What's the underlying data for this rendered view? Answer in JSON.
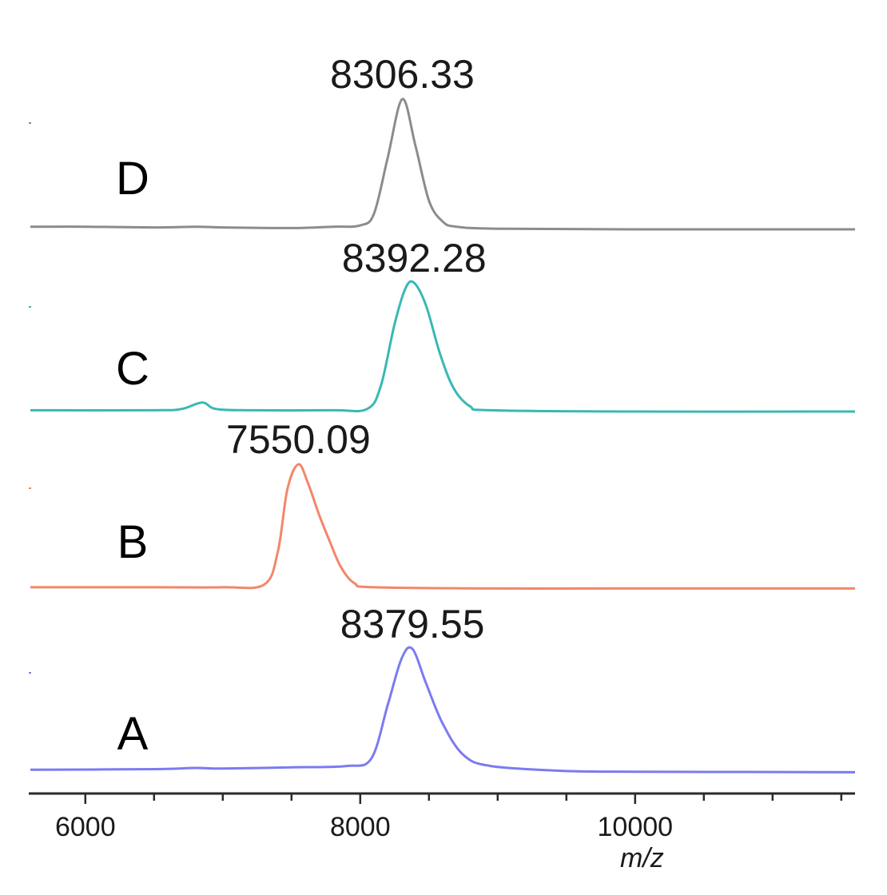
{
  "chart_data": {
    "type": "line",
    "title": "",
    "xlabel": "m/z",
    "ylabel": "",
    "xlim": [
      5600,
      11600
    ],
    "x_ticks": [
      6000,
      8000,
      10000
    ],
    "x_tick_labels": [
      "6000",
      "8000",
      "10000"
    ],
    "grid": false,
    "legend": "none",
    "layout": "stacked traces",
    "series": [
      {
        "name": "D",
        "color": "#8c8c8c",
        "peak_label": "8306.33",
        "peak_x": 8306.33,
        "points": [
          [
            5600,
            0.02
          ],
          [
            6000,
            0.02
          ],
          [
            6500,
            0.015
          ],
          [
            6800,
            0.02
          ],
          [
            7000,
            0.015
          ],
          [
            7500,
            0.01
          ],
          [
            7800,
            0.02
          ],
          [
            8000,
            0.03
          ],
          [
            8100,
            0.12
          ],
          [
            8200,
            0.55
          ],
          [
            8306.33,
            1.0
          ],
          [
            8400,
            0.65
          ],
          [
            8500,
            0.22
          ],
          [
            8600,
            0.06
          ],
          [
            8700,
            0.02
          ],
          [
            9000,
            0.005
          ],
          [
            10000,
            0.0
          ],
          [
            11600,
            0.0
          ]
        ]
      },
      {
        "name": "C",
        "color": "#3ab8b4",
        "peak_label": "8392.28",
        "peak_x": 8392.28,
        "points": [
          [
            5600,
            0.01
          ],
          [
            6500,
            0.01
          ],
          [
            6700,
            0.02
          ],
          [
            6850,
            0.07
          ],
          [
            6950,
            0.02
          ],
          [
            7200,
            0.01
          ],
          [
            7800,
            0.01
          ],
          [
            8050,
            0.02
          ],
          [
            8150,
            0.2
          ],
          [
            8250,
            0.68
          ],
          [
            8330,
            0.96
          ],
          [
            8392.28,
            1.0
          ],
          [
            8480,
            0.82
          ],
          [
            8580,
            0.45
          ],
          [
            8680,
            0.18
          ],
          [
            8800,
            0.04
          ],
          [
            8950,
            0.01
          ],
          [
            10000,
            0.0
          ],
          [
            11600,
            0.0
          ]
        ]
      },
      {
        "name": "B",
        "color": "#f2876a",
        "peak_label": "7550.09",
        "peak_x": 7550.09,
        "points": [
          [
            5600,
            0.02
          ],
          [
            6500,
            0.02
          ],
          [
            7000,
            0.02
          ],
          [
            7300,
            0.04
          ],
          [
            7400,
            0.3
          ],
          [
            7470,
            0.8
          ],
          [
            7550.09,
            1.0
          ],
          [
            7620,
            0.85
          ],
          [
            7700,
            0.6
          ],
          [
            7780,
            0.38
          ],
          [
            7860,
            0.18
          ],
          [
            7960,
            0.05
          ],
          [
            8100,
            0.02
          ],
          [
            9000,
            0.01
          ],
          [
            10000,
            0.01
          ],
          [
            11600,
            0.01
          ]
        ]
      },
      {
        "name": "A",
        "color": "#7b7bf0",
        "peak_label": "8379.55",
        "peak_x": 8379.55,
        "points": [
          [
            5600,
            0.03
          ],
          [
            6500,
            0.035
          ],
          [
            6800,
            0.045
          ],
          [
            7000,
            0.04
          ],
          [
            7500,
            0.05
          ],
          [
            7900,
            0.06
          ],
          [
            8080,
            0.12
          ],
          [
            8200,
            0.55
          ],
          [
            8300,
            0.92
          ],
          [
            8379.55,
            1.0
          ],
          [
            8480,
            0.72
          ],
          [
            8600,
            0.4
          ],
          [
            8750,
            0.15
          ],
          [
            8950,
            0.06
          ],
          [
            9500,
            0.02
          ],
          [
            10000,
            0.015
          ],
          [
            11600,
            0.01
          ]
        ]
      }
    ]
  }
}
